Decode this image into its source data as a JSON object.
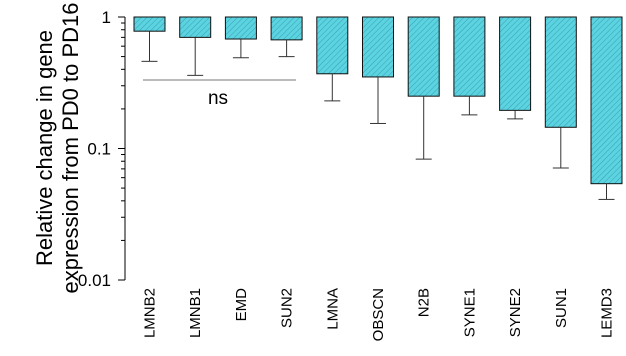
{
  "chart_data": {
    "type": "bar",
    "scale": "log",
    "ylabel_lines": [
      "Relative change in gene",
      "expression from PD0 to PD16"
    ],
    "xlabel": "",
    "ylim": [
      0.01,
      1
    ],
    "yticks": [
      {
        "value": 1,
        "label": "1"
      },
      {
        "value": 0.1,
        "label": "0.1"
      },
      {
        "value": 0.01,
        "label": "0.01"
      }
    ],
    "categories": [
      "LMNB2",
      "LMNB1",
      "EMD",
      "SUN2",
      "LMNA",
      "OBSCN",
      "N2B",
      "SYNE1",
      "SYNE2",
      "SUN1",
      "LEMD3"
    ],
    "values": [
      0.78,
      0.7,
      0.68,
      0.67,
      0.37,
      0.35,
      0.25,
      0.25,
      0.195,
      0.145,
      0.054
    ],
    "error_low": [
      0.46,
      0.36,
      0.49,
      0.5,
      0.23,
      0.155,
      0.083,
      0.18,
      0.168,
      0.071,
      0.041
    ],
    "bar_color": "#5bd3e0",
    "annotation": {
      "text": "ns",
      "span": [
        "LMNB2",
        "SUN2"
      ]
    }
  }
}
